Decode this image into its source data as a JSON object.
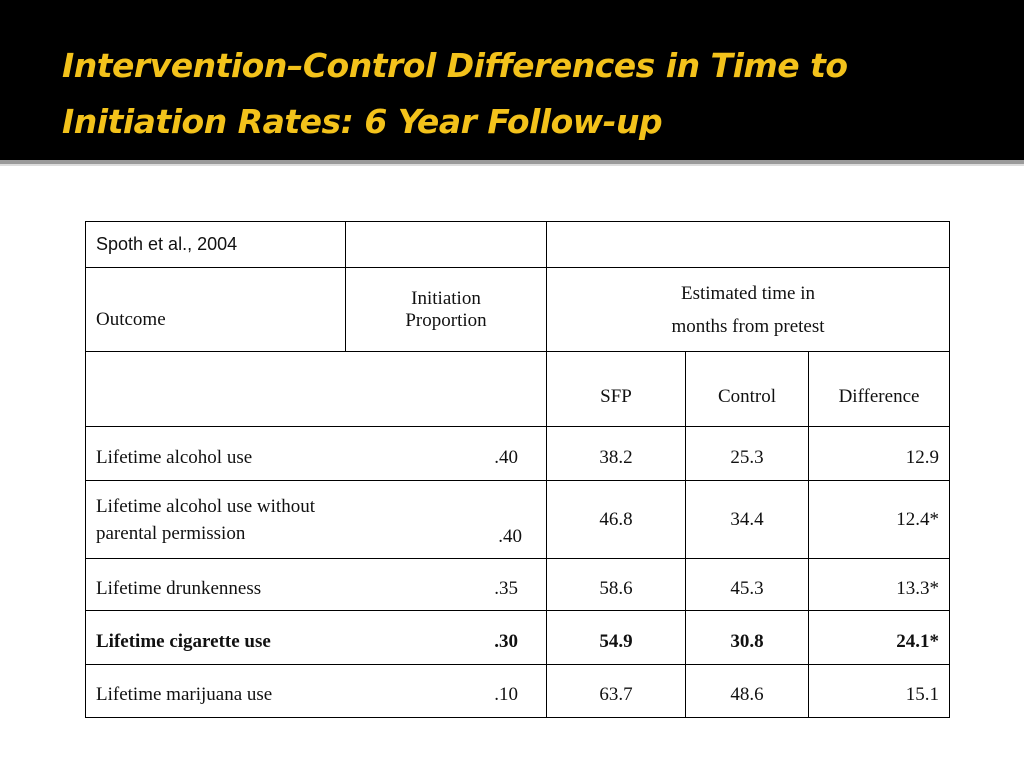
{
  "slide": {
    "title": "Intervention–Control Differences in Time to Initiation Rates: 6 Year Follow-up",
    "title_color": "#f3c21b",
    "background_title": "#000000"
  },
  "table": {
    "citation": "Spoth et al., 2004",
    "header": {
      "outcome": "Outcome",
      "initiation_line1": "Initiation",
      "initiation_line2": "Proportion",
      "estimated_line1": "Estimated time in",
      "estimated_line2": "months from pretest",
      "sfp": "SFP",
      "control": "Control",
      "difference": "Difference"
    },
    "rows": [
      {
        "outcome": "Lifetime alcohol use",
        "outcome_line2": "",
        "proportion": ".40",
        "sfp": "38.2",
        "control": "25.3",
        "difference": "12.9",
        "bold": false
      },
      {
        "outcome": "Lifetime alcohol use without",
        "outcome_line2": "parental permission",
        "proportion": ".40",
        "sfp": "46.8",
        "control": "34.4",
        "difference": "12.4*",
        "bold": false
      },
      {
        "outcome": "Lifetime drunkenness",
        "outcome_line2": "",
        "proportion": ".35",
        "sfp": "58.6",
        "control": "45.3",
        "difference": "13.3*",
        "bold": false
      },
      {
        "outcome": "Lifetime cigarette use",
        "outcome_line2": "",
        "proportion": ".30",
        "sfp": "54.9",
        "control": "30.8",
        "difference": "24.1*",
        "bold": true
      },
      {
        "outcome": "Lifetime marijuana use",
        "outcome_line2": "",
        "proportion": ".10",
        "sfp": "63.7",
        "control": "48.6",
        "difference": "15.1",
        "bold": false
      }
    ]
  }
}
